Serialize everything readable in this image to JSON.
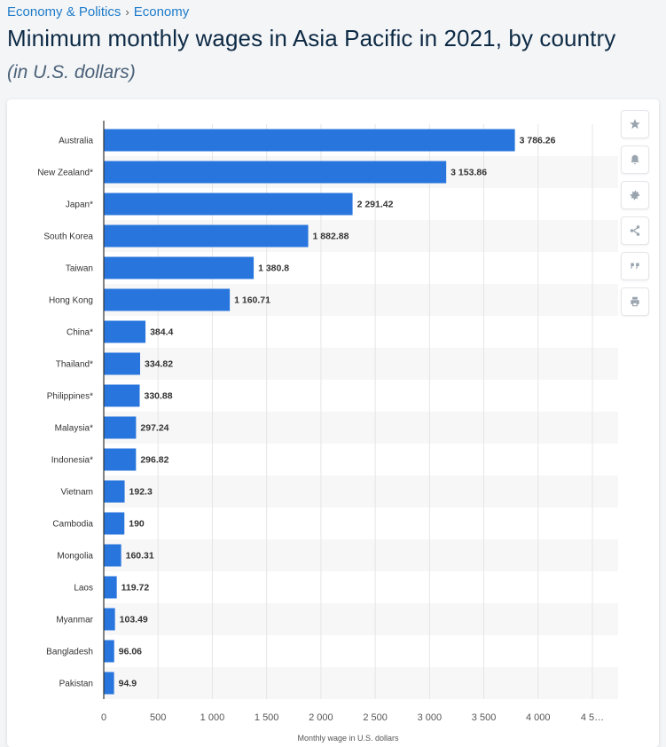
{
  "breadcrumb": {
    "items": [
      "Economy & Politics",
      "Economy"
    ],
    "separator": "›"
  },
  "title": "Minimum monthly wages in Asia Pacific in 2021, by country",
  "subtitle": "(in U.S. dollars)",
  "toolbar": {
    "icons": [
      "star-icon",
      "bell-icon",
      "gear-icon",
      "share-icon",
      "quote-icon",
      "print-icon"
    ]
  },
  "colors": {
    "bar": "#2876dd",
    "stripe": "#f7f7f7",
    "grid": "#e6e6e6",
    "axis": "#333333",
    "label": "#333333"
  },
  "chart_data": {
    "type": "bar",
    "orientation": "horizontal",
    "categories": [
      "Australia",
      "New Zealand*",
      "Japan*",
      "South Korea",
      "Taiwan",
      "Hong Kong",
      "China*",
      "Thailand*",
      "Philippines*",
      "Malaysia*",
      "Indonesia*",
      "Vietnam",
      "Cambodia",
      "Mongolia",
      "Laos",
      "Myanmar",
      "Bangladesh",
      "Pakistan"
    ],
    "values": [
      3786.26,
      3153.86,
      2291.42,
      1882.88,
      1380.8,
      1160.71,
      384.4,
      334.82,
      330.88,
      297.24,
      296.82,
      192.3,
      190,
      160.31,
      119.72,
      103.49,
      96.06,
      94.9
    ],
    "value_labels": [
      "3 786.26",
      "3 153.86",
      "2 291.42",
      "1 882.88",
      "1 380.8",
      "1 160.71",
      "384.4",
      "334.82",
      "330.88",
      "297.24",
      "296.82",
      "192.3",
      "190",
      "160.31",
      "119.72",
      "103.49",
      "96.06",
      "94.9"
    ],
    "x_ticks": [
      0,
      500,
      1000,
      1500,
      2000,
      2500,
      3000,
      3500,
      4000,
      4500
    ],
    "x_tick_labels": [
      "0",
      "500",
      "1 000",
      "1 500",
      "2 000",
      "2 500",
      "3 000",
      "3 500",
      "4 000",
      "4 5…"
    ],
    "xlim": [
      0,
      4500
    ],
    "xlabel": "Monthly wage in U.S. dollars",
    "ylabel": "",
    "grid": "vertical"
  }
}
